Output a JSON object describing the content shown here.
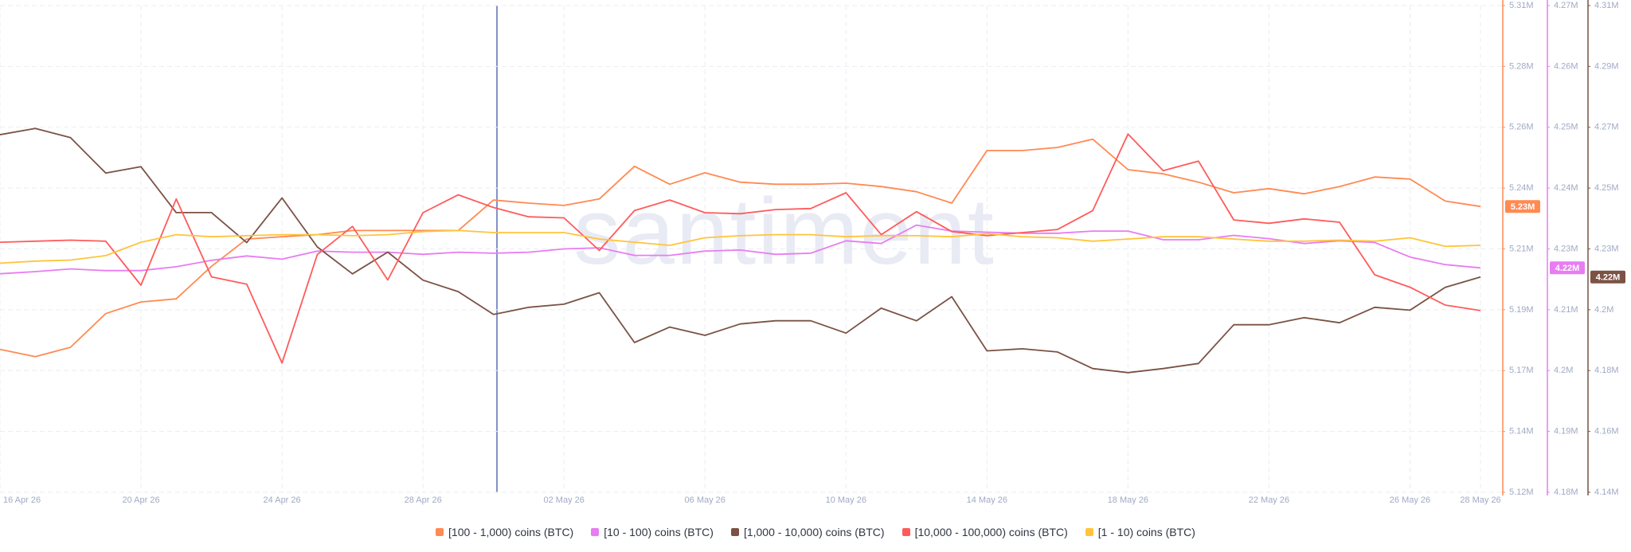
{
  "watermark": "santiment",
  "chart_data": {
    "type": "line",
    "grid": true,
    "legend": "bottom",
    "x": [
      "16 Apr 26",
      "17 Apr 26",
      "18 Apr 26",
      "19 Apr 26",
      "20 Apr 26",
      "21 Apr 26",
      "22 Apr 26",
      "23 Apr 26",
      "24 Apr 26",
      "25 Apr 26",
      "26 Apr 26",
      "27 Apr 26",
      "28 Apr 26",
      "29 Apr 26",
      "30 Apr 26",
      "01 May 26",
      "02 May 26",
      "03 May 26",
      "04 May 26",
      "05 May 26",
      "06 May 26",
      "07 May 26",
      "08 May 26",
      "09 May 26",
      "10 May 26",
      "11 May 26",
      "12 May 26",
      "13 May 26",
      "14 May 26",
      "15 May 26",
      "16 May 26",
      "17 May 26",
      "18 May 26",
      "19 May 26",
      "20 May 26",
      "21 May 26",
      "22 May 26",
      "23 May 26",
      "24 May 26",
      "25 May 26",
      "26 May 26",
      "27 May 26",
      "28 May 26"
    ],
    "xticks": [
      "16 Apr 26",
      "20 Apr 26",
      "24 Apr 26",
      "28 Apr 26",
      "02 May 26",
      "06 May 26",
      "10 May 26",
      "14 May 26",
      "18 May 26",
      "22 May 26",
      "26 May 26",
      "28 May 26"
    ],
    "ylim": [
      5.12,
      5.308
    ],
    "yticks": [
      {
        "value": 5.12,
        "label": "5.12M"
      },
      {
        "value": 5.1435,
        "label": "5.14M"
      },
      {
        "value": 5.167,
        "label": "5.17M"
      },
      {
        "value": 5.1905,
        "label": "5.19M"
      },
      {
        "value": 5.214,
        "label": "5.21M"
      },
      {
        "value": 5.2375,
        "label": "5.24M"
      },
      {
        "value": 5.261,
        "label": "5.26M"
      },
      {
        "value": 5.2845,
        "label": "5.28M"
      },
      {
        "value": 5.308,
        "label": "5.31M"
      }
    ],
    "y2lim": [
      4.18,
      4.27
    ],
    "y2ticks": [
      {
        "value": 4.18,
        "label": "4.18M"
      },
      {
        "value": 4.19125,
        "label": "4.19M"
      },
      {
        "value": 4.2025,
        "label": "4.2M"
      },
      {
        "value": 4.21375,
        "label": "4.21M"
      },
      {
        "value": 4.225,
        "label": "4.23M"
      },
      {
        "value": 4.23625,
        "label": "4.24M"
      },
      {
        "value": 4.2475,
        "label": "4.25M"
      },
      {
        "value": 4.25875,
        "label": "4.26M"
      },
      {
        "value": 4.27,
        "label": "4.27M"
      }
    ],
    "y3lim": [
      4.14,
      4.31
    ],
    "y3ticks": [
      {
        "value": 4.14,
        "label": "4.14M"
      },
      {
        "value": 4.16125,
        "label": "4.16M"
      },
      {
        "value": 4.1825,
        "label": "4.18M"
      },
      {
        "value": 4.20375,
        "label": "4.2M"
      },
      {
        "value": 4.225,
        "label": "4.23M"
      },
      {
        "value": 4.24625,
        "label": "4.25M"
      },
      {
        "value": 4.2675,
        "label": "4.27M"
      },
      {
        "value": 4.28875,
        "label": "4.29M"
      },
      {
        "value": 4.31,
        "label": "4.31M"
      }
    ],
    "series": [
      {
        "name": "[100 - 1,000) coins (BTC)",
        "color": "#ff8a52",
        "axis": "y",
        "last_value_label": "5.23M",
        "values": [
          5.1752,
          5.1724,
          5.176,
          5.189,
          5.1935,
          5.1947,
          5.2073,
          5.2178,
          5.2187,
          5.2195,
          5.2211,
          5.2211,
          5.2211,
          5.2211,
          5.2329,
          5.2317,
          5.2308,
          5.2333,
          5.2459,
          5.239,
          5.2434,
          5.2398,
          5.239,
          5.239,
          5.2394,
          5.2381,
          5.2361,
          5.2317,
          5.252,
          5.252,
          5.2532,
          5.2564,
          5.2446,
          5.243,
          5.2398,
          5.2357,
          5.2373,
          5.2353,
          5.2381,
          5.2418,
          5.241,
          5.2325,
          5.2304
        ]
      },
      {
        "name": "[10 - 100) coins (BTC)",
        "color": "#e87cf2",
        "axis": "y2",
        "last_value_label": "4.22M",
        "values": [
          4.2204,
          4.2208,
          4.2213,
          4.221,
          4.221,
          4.2217,
          4.2229,
          4.2237,
          4.2231,
          4.2246,
          4.2244,
          4.2244,
          4.224,
          4.2244,
          4.2242,
          4.2244,
          4.225,
          4.2252,
          4.2238,
          4.2238,
          4.2246,
          4.2248,
          4.224,
          4.2242,
          4.2265,
          4.226,
          4.2294,
          4.2283,
          4.2281,
          4.2279,
          4.2279,
          4.2283,
          4.2283,
          4.2267,
          4.2267,
          4.2275,
          4.2269,
          4.226,
          4.2265,
          4.2262,
          4.2235,
          4.2221,
          4.2215
        ]
      },
      {
        "name": "[1,000 - 10,000) coins (BTC)",
        "color": "#7b5244",
        "axis": "y3",
        "last_value_label": "4.22M",
        "values": [
          4.2649,
          4.2671,
          4.2639,
          4.2515,
          4.2537,
          4.2377,
          4.2377,
          4.2272,
          4.2428,
          4.2257,
          4.2163,
          4.2239,
          4.2141,
          4.2101,
          4.2021,
          4.2046,
          4.2057,
          4.2097,
          4.1923,
          4.1977,
          4.1948,
          4.1988,
          4.1999,
          4.1999,
          4.1956,
          4.2043,
          4.1999,
          4.2083,
          4.1894,
          4.1901,
          4.189,
          4.1832,
          4.1818,
          4.1832,
          4.185,
          4.1985,
          4.1985,
          4.201,
          4.1992,
          4.2046,
          4.2036,
          4.2116,
          4.2152
        ]
      },
      {
        "name": "[10,000 - 100,000) coins (BTC)",
        "color": "#ff5b5b",
        "axis": "y",
        "values": [
          5.2166,
          5.217,
          5.2174,
          5.217,
          5.2,
          5.2333,
          5.2032,
          5.2004,
          5.1699,
          5.2118,
          5.2227,
          5.202,
          5.228,
          5.2349,
          5.23,
          5.2264,
          5.226,
          5.2134,
          5.2288,
          5.2329,
          5.228,
          5.2276,
          5.2292,
          5.2296,
          5.2357,
          5.2195,
          5.2284,
          5.2207,
          5.2191,
          5.2203,
          5.2215,
          5.2288,
          5.2584,
          5.2442,
          5.2479,
          5.2252,
          5.2239,
          5.2256,
          5.2243,
          5.204,
          5.1992,
          5.1923,
          5.1902
        ]
      },
      {
        "name": "[1 - 10) coins (BTC)",
        "color": "#ffc43a",
        "axis": "y",
        "values": [
          5.2085,
          5.2093,
          5.2097,
          5.2114,
          5.2166,
          5.2195,
          5.2187,
          5.2191,
          5.2195,
          5.2195,
          5.2191,
          5.2195,
          5.2207,
          5.2211,
          5.2203,
          5.2203,
          5.2203,
          5.2178,
          5.2166,
          5.2154,
          5.2183,
          5.2191,
          5.2195,
          5.2195,
          5.2187,
          5.2191,
          5.2191,
          5.2187,
          5.2199,
          5.2187,
          5.2183,
          5.217,
          5.2178,
          5.2187,
          5.2187,
          5.2178,
          5.217,
          5.217,
          5.2174,
          5.217,
          5.2183,
          5.215,
          5.2154
        ]
      }
    ]
  }
}
